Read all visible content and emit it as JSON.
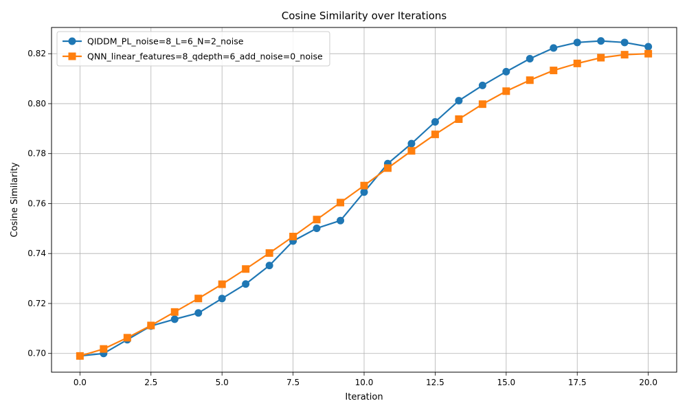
{
  "chart_data": {
    "type": "line",
    "title": "Cosine Similarity over Iterations",
    "xlabel": "Iteration",
    "ylabel": "Cosine Similarity",
    "xlim": [
      -1.0,
      21.0
    ],
    "ylim": [
      0.6925,
      0.8305
    ],
    "xticks": [
      0.0,
      2.5,
      5.0,
      7.5,
      10.0,
      12.5,
      15.0,
      17.5,
      20.0
    ],
    "xtick_labels": [
      "0.0",
      "2.5",
      "5.0",
      "7.5",
      "10.0",
      "12.5",
      "15.0",
      "17.5",
      "20.0"
    ],
    "yticks": [
      0.7,
      0.72,
      0.74,
      0.76,
      0.78,
      0.8,
      0.82
    ],
    "ytick_labels": [
      "0.70",
      "0.72",
      "0.74",
      "0.76",
      "0.78",
      "0.80",
      "0.82"
    ],
    "grid": true,
    "legend_position": "top-left",
    "x": [
      0.0,
      0.833,
      1.667,
      2.5,
      3.333,
      4.167,
      5.0,
      5.833,
      6.667,
      7.5,
      8.333,
      9.167,
      10.0,
      10.833,
      11.667,
      12.5,
      13.333,
      14.167,
      15.0,
      15.833,
      16.667,
      17.5,
      18.333,
      19.167,
      20.0
    ],
    "series": [
      {
        "name": "QIDDM_PL_noise=8_L=6_N=2_noise",
        "color": "#1f77b4",
        "marker": "circle",
        "values": [
          0.699,
          0.7,
          0.7055,
          0.711,
          0.7137,
          0.7162,
          0.722,
          0.7278,
          0.7352,
          0.745,
          0.7501,
          0.7532,
          0.7646,
          0.776,
          0.784,
          0.7927,
          0.8012,
          0.8073,
          0.8128,
          0.818,
          0.8223,
          0.8245,
          0.8251,
          0.8245,
          0.8228
        ]
      },
      {
        "name": "QNN_linear_features=8_qdepth=6_add_noise=0_noise",
        "color": "#ff7f0e",
        "marker": "square",
        "values": [
          0.699,
          0.7018,
          0.7063,
          0.7112,
          0.7166,
          0.722,
          0.7277,
          0.7338,
          0.7402,
          0.7468,
          0.7536,
          0.7604,
          0.7672,
          0.7742,
          0.7811,
          0.7877,
          0.7938,
          0.7998,
          0.805,
          0.8094,
          0.8133,
          0.8161,
          0.8184,
          0.8196,
          0.82
        ]
      }
    ]
  }
}
